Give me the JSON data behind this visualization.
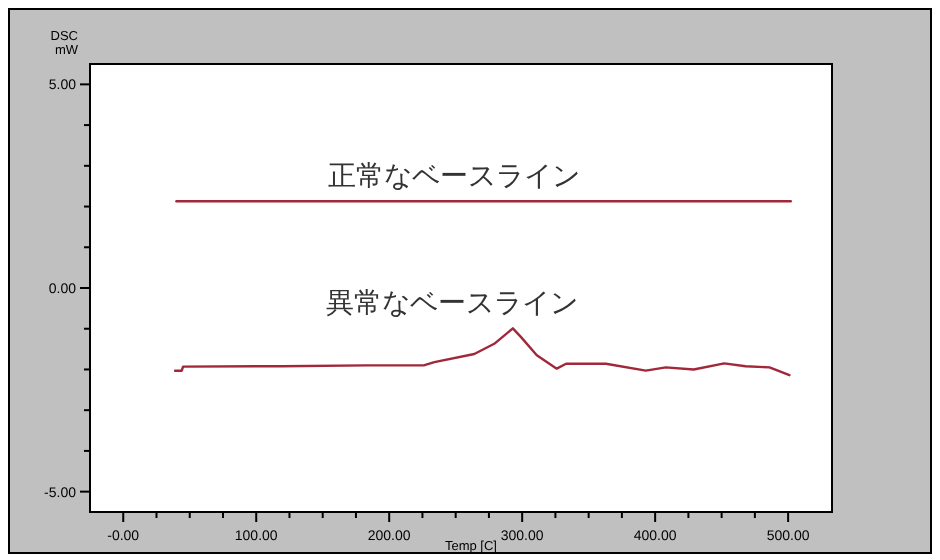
{
  "chart_data": {
    "type": "line",
    "xlabel": "Temp [C]",
    "ylabel": "DSC\nmW",
    "xlim": [
      -25,
      533
    ],
    "ylim": [
      -5.5,
      5.5
    ],
    "xticks": [
      {
        "value": 0,
        "label": "-0.00"
      },
      {
        "value": 25,
        "label": null
      },
      {
        "value": 50,
        "label": null
      },
      {
        "value": 75,
        "label": null
      },
      {
        "value": 100,
        "label": "100.00"
      },
      {
        "value": 125,
        "label": null
      },
      {
        "value": 150,
        "label": null
      },
      {
        "value": 175,
        "label": null
      },
      {
        "value": 200,
        "label": "200.00"
      },
      {
        "value": 225,
        "label": null
      },
      {
        "value": 250,
        "label": null
      },
      {
        "value": 275,
        "label": null
      },
      {
        "value": 300,
        "label": "300.00"
      },
      {
        "value": 325,
        "label": null
      },
      {
        "value": 350,
        "label": null
      },
      {
        "value": 375,
        "label": null
      },
      {
        "value": 400,
        "label": "400.00"
      },
      {
        "value": 425,
        "label": null
      },
      {
        "value": 450,
        "label": null
      },
      {
        "value": 475,
        "label": null
      },
      {
        "value": 500,
        "label": "500.00"
      }
    ],
    "yticks": [
      {
        "value": -5,
        "label": "-5.00"
      },
      {
        "value": -4,
        "label": null
      },
      {
        "value": -3,
        "label": null
      },
      {
        "value": -2,
        "label": null
      },
      {
        "value": -1,
        "label": null
      },
      {
        "value": 0,
        "label": "0.00"
      },
      {
        "value": 1,
        "label": null
      },
      {
        "value": 2,
        "label": null
      },
      {
        "value": 3,
        "label": null
      },
      {
        "value": 4,
        "label": null
      },
      {
        "value": 5,
        "label": "5.00"
      }
    ],
    "grid": false,
    "series": [
      {
        "name": "正常なベースライン",
        "color": "#a0283a",
        "x": [
          40,
          502
        ],
        "values": [
          2.13,
          2.13
        ]
      },
      {
        "name": "異常なベースライン",
        "color": "#a0283a",
        "x": [
          39,
          44,
          45,
          119,
          183,
          226,
          234,
          264,
          279,
          293,
          299,
          311,
          326,
          333,
          363,
          393,
          408,
          429,
          452,
          468,
          486,
          501
        ],
        "values": [
          -2.03,
          -2.03,
          -1.93,
          -1.92,
          -1.9,
          -1.9,
          -1.82,
          -1.62,
          -1.37,
          -0.99,
          -1.2,
          -1.65,
          -1.98,
          -1.86,
          -1.86,
          -2.03,
          -1.95,
          -2.0,
          -1.85,
          -1.92,
          -1.95,
          -2.14
        ]
      }
    ]
  }
}
